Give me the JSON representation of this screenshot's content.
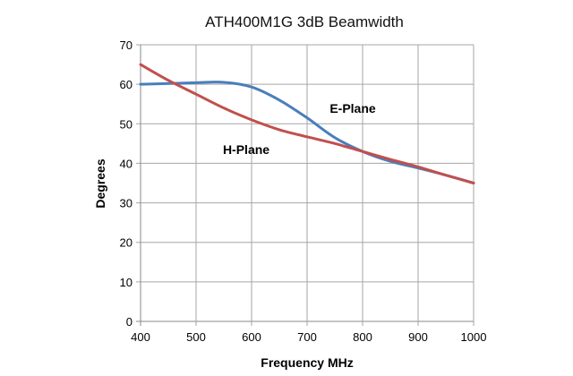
{
  "chart_data": {
    "type": "line",
    "title": "ATH400M1G 3dB Beamwidth",
    "xlabel": "Frequency MHz",
    "ylabel": "Degrees",
    "xlim": [
      400,
      1000
    ],
    "ylim": [
      0,
      70
    ],
    "xticks": [
      400,
      500,
      600,
      700,
      800,
      900,
      1000
    ],
    "yticks": [
      0,
      10,
      20,
      30,
      40,
      50,
      60,
      70
    ],
    "grid": true,
    "x": [
      400,
      450,
      500,
      550,
      600,
      650,
      700,
      750,
      800,
      850,
      900,
      950,
      1000
    ],
    "series": [
      {
        "name": "E-Plane",
        "color": "#4a7ebb",
        "values": [
          60,
          60.2,
          60.4,
          60.5,
          59.3,
          56,
          51.5,
          46.5,
          43,
          40.5,
          38.8,
          37,
          35
        ]
      },
      {
        "name": "H-Plane",
        "color": "#c0504d",
        "values": [
          65,
          61,
          57.5,
          54,
          51,
          48.5,
          46.7,
          45,
          43,
          41,
          39.1,
          37,
          35
        ]
      }
    ],
    "annotations": [
      "E-Plane",
      "H-Plane"
    ]
  }
}
